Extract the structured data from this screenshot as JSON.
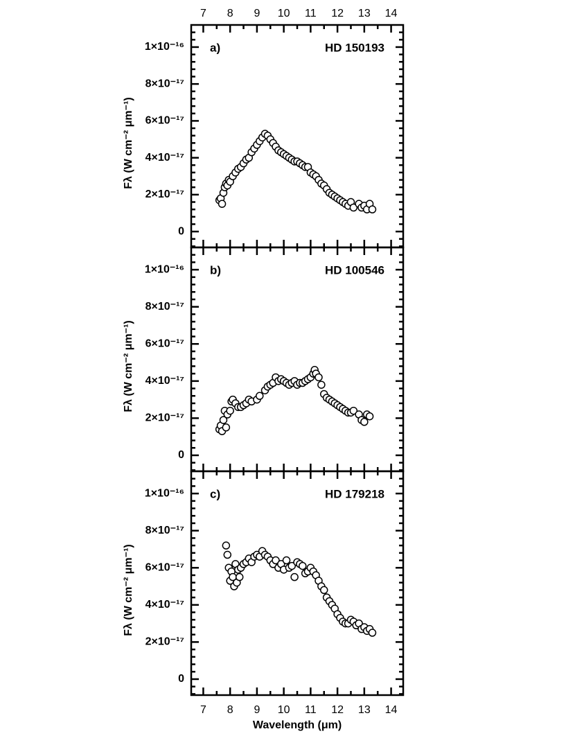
{
  "chart_data": [
    {
      "type": "scatter",
      "panel": "a)",
      "title": "HD 150193",
      "ylabel": "Fλ (W cm⁻² μm⁻¹)",
      "xlim": [
        6.55,
        14.45
      ],
      "xticks": [
        7,
        8,
        9,
        10,
        11,
        12,
        13,
        14
      ],
      "ylim": [
        -8.6e-18,
        1.12e-16
      ],
      "yticks": [
        0,
        {
          "value": 2e-17,
          "label": "2×10⁻¹⁷"
        },
        {
          "value": 4e-17,
          "label": "4×10⁻¹⁷"
        },
        {
          "value": 6e-17,
          "label": "6×10⁻¹⁷"
        },
        {
          "value": 8e-17,
          "label": "8×10⁻¹⁷"
        },
        {
          "value": 1e-16,
          "label": "1×10⁻¹⁶"
        }
      ],
      "x": [
        7.6,
        7.65,
        7.7,
        7.75,
        7.8,
        7.85,
        7.9,
        7.95,
        8.0,
        8.1,
        8.2,
        8.3,
        8.4,
        8.5,
        8.6,
        8.7,
        8.8,
        8.9,
        9.0,
        9.1,
        9.2,
        9.3,
        9.4,
        9.5,
        9.6,
        9.7,
        9.8,
        9.9,
        10.0,
        10.1,
        10.2,
        10.3,
        10.4,
        10.5,
        10.6,
        10.7,
        10.8,
        10.9,
        11.0,
        11.1,
        11.2,
        11.3,
        11.4,
        11.5,
        11.6,
        11.7,
        11.8,
        11.9,
        12.0,
        12.1,
        12.2,
        12.3,
        12.4,
        12.5,
        12.6,
        12.8,
        12.9,
        13.0,
        13.1,
        13.2,
        13.3
      ],
      "series": [
        {
          "color": "#ffffff",
          "values": [
            1.7e-17,
            1.8e-17,
            1.5e-17,
            2.1e-17,
            2.4e-17,
            2.6e-17,
            2.5e-17,
            2.8e-17,
            2.7e-17,
            3e-17,
            3.2e-17,
            3.4e-17,
            3.5e-17,
            3.7e-17,
            3.9e-17,
            4e-17,
            4.3e-17,
            4.5e-17,
            4.7e-17,
            4.9e-17,
            5.1e-17,
            5.3e-17,
            5.2e-17,
            5e-17,
            4.8e-17,
            4.6e-17,
            4.4e-17,
            4.3e-17,
            4.2e-17,
            4.1e-17,
            4e-17,
            3.9e-17,
            3.8e-17,
            3.8e-17,
            3.7e-17,
            3.6e-17,
            3.5e-17,
            3.5e-17,
            3.2e-17,
            3.1e-17,
            3e-17,
            2.8e-17,
            2.6e-17,
            2.5e-17,
            2.3e-17,
            2.1e-17,
            2e-17,
            1.9e-17,
            1.8e-17,
            1.7e-17,
            1.6e-17,
            1.5e-17,
            1.4e-17,
            1.6e-17,
            1.3e-17,
            1.5e-17,
            1.3e-17,
            1.4e-17,
            1.2e-17,
            1.5e-17,
            1.2e-17
          ]
        }
      ]
    },
    {
      "type": "scatter",
      "panel": "b)",
      "title": "HD 100546",
      "ylabel": "Fλ (W cm⁻² μm⁻¹)",
      "xlim": [
        6.55,
        14.45
      ],
      "xticks": [
        7,
        8,
        9,
        10,
        11,
        12,
        13,
        14
      ],
      "ylim": [
        -8.6e-18,
        1.12e-16
      ],
      "yticks": [
        0,
        {
          "value": 2e-17,
          "label": "2×10⁻¹⁷"
        },
        {
          "value": 4e-17,
          "label": "4×10⁻¹⁷"
        },
        {
          "value": 6e-17,
          "label": "6×10⁻¹⁷"
        },
        {
          "value": 8e-17,
          "label": "8×10⁻¹⁷"
        },
        {
          "value": 1e-16,
          "label": "1×10⁻¹⁶"
        }
      ],
      "x": [
        7.6,
        7.65,
        7.7,
        7.75,
        7.8,
        7.85,
        7.9,
        8.0,
        8.05,
        8.1,
        8.2,
        8.3,
        8.4,
        8.5,
        8.6,
        8.7,
        8.8,
        9.0,
        9.1,
        9.3,
        9.4,
        9.5,
        9.6,
        9.7,
        9.8,
        9.9,
        10.0,
        10.1,
        10.2,
        10.3,
        10.4,
        10.5,
        10.6,
        10.7,
        10.8,
        10.9,
        11.0,
        11.1,
        11.15,
        11.2,
        11.3,
        11.4,
        11.5,
        11.6,
        11.7,
        11.8,
        11.9,
        12.0,
        12.1,
        12.2,
        12.3,
        12.4,
        12.5,
        12.6,
        12.8,
        12.9,
        13.0,
        13.1,
        13.2
      ],
      "series": [
        {
          "color": "#ffffff",
          "values": [
            1.4e-17,
            1.6e-17,
            1.3e-17,
            1.9e-17,
            2.4e-17,
            1.5e-17,
            2.2e-17,
            2.4e-17,
            2.9e-17,
            3e-17,
            2.8e-17,
            2.6e-17,
            2.6e-17,
            2.7e-17,
            2.8e-17,
            3e-17,
            2.9e-17,
            3e-17,
            3.2e-17,
            3.5e-17,
            3.7e-17,
            3.8e-17,
            3.9e-17,
            4.2e-17,
            4e-17,
            4.1e-17,
            4e-17,
            3.9e-17,
            3.8e-17,
            3.9e-17,
            4e-17,
            3.8e-17,
            3.9e-17,
            3.9e-17,
            4e-17,
            4.1e-17,
            4.2e-17,
            4.4e-17,
            4.6e-17,
            4.4e-17,
            4.2e-17,
            3.8e-17,
            3.3e-17,
            3.1e-17,
            3e-17,
            2.9e-17,
            2.8e-17,
            2.7e-17,
            2.6e-17,
            2.5e-17,
            2.4e-17,
            2.3e-17,
            2.3e-17,
            2.4e-17,
            2.2e-17,
            1.9e-17,
            1.8e-17,
            2.2e-17,
            2.1e-17
          ]
        }
      ]
    },
    {
      "type": "scatter",
      "panel": "c)",
      "title": "HD 179218",
      "ylabel": "Fλ (W cm⁻² μm⁻¹)",
      "xlabel": "Wavelength (μm)",
      "xlim": [
        6.55,
        14.45
      ],
      "xticks": [
        7,
        8,
        9,
        10,
        11,
        12,
        13,
        14
      ],
      "ylim": [
        -8.6e-18,
        1.12e-16
      ],
      "yticks": [
        0,
        {
          "value": 2e-17,
          "label": "2×10⁻¹⁷"
        },
        {
          "value": 4e-17,
          "label": "4×10⁻¹⁷"
        },
        {
          "value": 6e-17,
          "label": "6×10⁻¹⁷"
        },
        {
          "value": 8e-17,
          "label": "8×10⁻¹⁷"
        },
        {
          "value": 1e-16,
          "label": "1×10⁻¹⁶"
        }
      ],
      "x": [
        7.85,
        7.9,
        7.95,
        8.0,
        8.05,
        8.1,
        8.15,
        8.2,
        8.25,
        8.3,
        8.35,
        8.4,
        8.5,
        8.6,
        8.7,
        8.8,
        8.9,
        9.0,
        9.1,
        9.2,
        9.3,
        9.4,
        9.5,
        9.6,
        9.7,
        9.8,
        9.9,
        10.0,
        10.1,
        10.2,
        10.3,
        10.4,
        10.5,
        10.6,
        10.7,
        10.8,
        10.9,
        11.0,
        11.1,
        11.2,
        11.3,
        11.4,
        11.5,
        11.6,
        11.7,
        11.8,
        11.9,
        12.0,
        12.1,
        12.2,
        12.3,
        12.4,
        12.5,
        12.6,
        12.7,
        12.8,
        12.9,
        13.0,
        13.1,
        13.2,
        13.3
      ],
      "series": [
        {
          "color": "#ffffff",
          "values": [
            7.2e-17,
            6.7e-17,
            6e-17,
            5.3e-17,
            5.8e-17,
            5.5e-17,
            5e-17,
            6.2e-17,
            5.2e-17,
            5.9e-17,
            5.5e-17,
            6e-17,
            6.2e-17,
            6.3e-17,
            6.5e-17,
            6.3e-17,
            6.6e-17,
            6.7e-17,
            6.6e-17,
            6.9e-17,
            6.7e-17,
            6.6e-17,
            6.4e-17,
            6.2e-17,
            6.4e-17,
            6e-17,
            6.2e-17,
            5.9e-17,
            6.4e-17,
            6e-17,
            6.1e-17,
            5.5e-17,
            6.3e-17,
            6.2e-17,
            6.1e-17,
            5.7e-17,
            5.8e-17,
            6e-17,
            5.8e-17,
            5.6e-17,
            5.3e-17,
            5e-17,
            4.8e-17,
            4.4e-17,
            4.2e-17,
            4e-17,
            3.8e-17,
            3.5e-17,
            3.3e-17,
            3.1e-17,
            3e-17,
            3e-17,
            3.2e-17,
            3.1e-17,
            2.9e-17,
            3e-17,
            2.7e-17,
            2.8e-17,
            2.6e-17,
            2.7e-17,
            2.5e-17
          ]
        }
      ]
    }
  ]
}
